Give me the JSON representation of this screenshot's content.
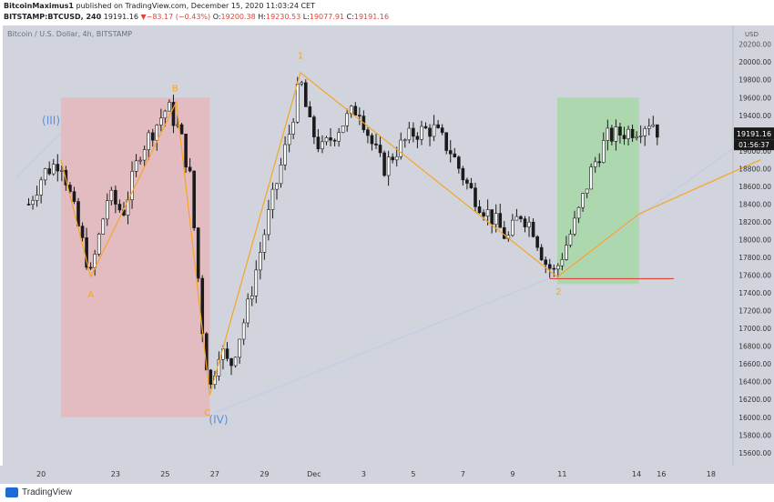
{
  "header": {
    "author": "BitcoinMaximus1",
    "published_text": "published on TradingView.com, December 15, 2020 11:03:24 CET",
    "symbol": "BITSTAMP:BTCUSD, 240",
    "last": "19191.16",
    "change_arrow": "▼",
    "change": "−83.17 (−0.43%)",
    "o_label": "O:",
    "o_value": "19200.38",
    "h_label": "H:",
    "h_value": "19230.53",
    "l_label": "L:",
    "l_value": "19077.91",
    "c_label": "C:",
    "c_value": "19191.16"
  },
  "footer": {
    "brand": "TradingView"
  },
  "colors": {
    "background": "#d1d4dc",
    "bullish_candle": "#ffffff",
    "bearish_candle": "#1a1a1a",
    "wave_line": "#f5a623",
    "wave_label_orange": "#f5a623",
    "wave_label_blue": "#5b8fd8",
    "red_zone": "#e8b4b8",
    "green_zone": "#a7d8a7",
    "support_line": "#e0453a"
  },
  "chart_data": {
    "type": "candlestick",
    "title": "Bitcoin / U.S. Dollar, 4h, BITSTAMP",
    "currency": "USD",
    "ylim": [
      15400,
      20400
    ],
    "y_ticks": [
      15600,
      15800,
      16000,
      16200,
      16400,
      16600,
      16800,
      17000,
      17200,
      17400,
      17600,
      17800,
      18000,
      18200,
      18400,
      18600,
      18800,
      19000,
      19200,
      19400,
      19600,
      19800,
      20000
    ],
    "y_tick_labels": [
      "15600.00",
      "15800.00",
      "16000.00",
      "16200.00",
      "16400.00",
      "16600.00",
      "16800.00",
      "17000.00",
      "17200.00",
      "17400.00",
      "17600.00",
      "17800.00",
      "18000.00",
      "18200.00",
      "18400.00",
      "18600.00",
      "18800.00",
      "19000.00",
      "19200.00",
      "19400.00",
      "19600.00",
      "19800.00",
      "20000.00"
    ],
    "y_tick_partial": "20200.00",
    "x_ticks": [
      {
        "day": 19.5,
        "label": "20"
      },
      {
        "day": 22.5,
        "label": "23"
      },
      {
        "day": 24.5,
        "label": "25"
      },
      {
        "day": 26.5,
        "label": "27"
      },
      {
        "day": 28.5,
        "label": "29"
      },
      {
        "day": 30.5,
        "label": "Dec"
      },
      {
        "day": 32.5,
        "label": "3"
      },
      {
        "day": 34.5,
        "label": "5"
      },
      {
        "day": 36.5,
        "label": "7"
      },
      {
        "day": 38.5,
        "label": "9"
      },
      {
        "day": 40.5,
        "label": "11"
      },
      {
        "day": 43.5,
        "label": "14"
      },
      {
        "day": 44.5,
        "label": "16"
      },
      {
        "day": 46.5,
        "label": "18"
      }
    ],
    "last_price": "19191.16",
    "countdown": "01:56:37",
    "anchors": [
      {
        "day": 19.0,
        "close": 18400
      },
      {
        "day": 19.6,
        "close": 18750
      },
      {
        "day": 20.3,
        "close": 18900
      },
      {
        "day": 21.5,
        "close": 17600
      },
      {
        "day": 22.2,
        "close": 18500
      },
      {
        "day": 22.8,
        "close": 18300
      },
      {
        "day": 23.5,
        "close": 19000
      },
      {
        "day": 24.6,
        "close": 19500
      },
      {
        "day": 25.1,
        "close": 19200
      },
      {
        "day": 25.5,
        "close": 18700
      },
      {
        "day": 26.0,
        "close": 17000
      },
      {
        "day": 26.3,
        "close": 16300
      },
      {
        "day": 26.7,
        "close": 16800
      },
      {
        "day": 27.1,
        "close": 16550
      },
      {
        "day": 27.8,
        "close": 17200
      },
      {
        "day": 28.6,
        "close": 18200
      },
      {
        "day": 29.5,
        "close": 19200
      },
      {
        "day": 29.95,
        "close": 19800
      },
      {
        "day": 30.3,
        "close": 19300
      },
      {
        "day": 30.8,
        "close": 19000
      },
      {
        "day": 31.6,
        "close": 19300
      },
      {
        "day": 32.3,
        "close": 19500
      },
      {
        "day": 32.8,
        "close": 19100
      },
      {
        "day": 33.3,
        "close": 18800
      },
      {
        "day": 33.8,
        "close": 19000
      },
      {
        "day": 34.5,
        "close": 19200
      },
      {
        "day": 35.3,
        "close": 19250
      },
      {
        "day": 36.0,
        "close": 19000
      },
      {
        "day": 36.7,
        "close": 18600
      },
      {
        "day": 37.2,
        "close": 18400
      },
      {
        "day": 37.8,
        "close": 18200
      },
      {
        "day": 38.3,
        "close": 18000
      },
      {
        "day": 38.8,
        "close": 18300
      },
      {
        "day": 39.3,
        "close": 18150
      },
      {
        "day": 39.8,
        "close": 17750
      },
      {
        "day": 40.2,
        "close": 17620
      },
      {
        "day": 40.6,
        "close": 17900
      },
      {
        "day": 41.1,
        "close": 18250
      },
      {
        "day": 41.7,
        "close": 18800
      },
      {
        "day": 42.3,
        "close": 19150
      },
      {
        "day": 42.9,
        "close": 19200
      },
      {
        "day": 43.5,
        "close": 19250
      },
      {
        "day": 44.1,
        "close": 19350
      },
      {
        "day": 44.4,
        "close": 19200
      }
    ],
    "wave_path": [
      {
        "day": 20.3,
        "price": 18900
      },
      {
        "day": 21.5,
        "price": 17580
      },
      {
        "day": 24.95,
        "price": 19550
      },
      {
        "day": 26.3,
        "price": 16250
      },
      {
        "day": 29.95,
        "price": 19880
      },
      {
        "day": 40.3,
        "price": 17580
      },
      {
        "day": 43.6,
        "price": 18290
      }
    ],
    "wave_extension": [
      {
        "day": 43.6,
        "price": 18290
      },
      {
        "day": 48.5,
        "price": 18900
      }
    ],
    "faint_lines": [
      [
        {
          "day": 18.5,
          "price": 18700
        },
        {
          "day": 20.3,
          "price": 19200
        }
      ],
      [
        {
          "day": 26.5,
          "price": 16050
        },
        {
          "day": 40.3,
          "price": 17600
        }
      ],
      [
        {
          "day": 40.3,
          "price": 17600
        },
        {
          "day": 48.5,
          "price": 19250
        }
      ]
    ],
    "labels": [
      {
        "text": "(III)",
        "day": 19.9,
        "price": 19300,
        "color": "blue"
      },
      {
        "text": "B",
        "day": 24.9,
        "price": 19670,
        "color": "orange"
      },
      {
        "text": "A",
        "day": 21.5,
        "price": 17350,
        "color": "orange"
      },
      {
        "text": "C",
        "day": 26.2,
        "price": 16020,
        "color": "orange"
      },
      {
        "text": "(IV)",
        "day": 26.65,
        "price": 15930,
        "color": "blue"
      },
      {
        "text": "1",
        "day": 29.95,
        "price": 20040,
        "color": "orange"
      },
      {
        "text": "2",
        "day": 40.35,
        "price": 17380,
        "color": "orange"
      }
    ],
    "zones": [
      {
        "color": "red",
        "x0": 20.3,
        "x1": 26.3,
        "y0": 16000,
        "y1": 19600
      },
      {
        "color": "green",
        "x0": 40.3,
        "x1": 43.6,
        "y0": 17500,
        "y1": 19600
      }
    ],
    "support_line": {
      "x0": 40.0,
      "x1": 45.0,
      "price": 17560
    }
  }
}
